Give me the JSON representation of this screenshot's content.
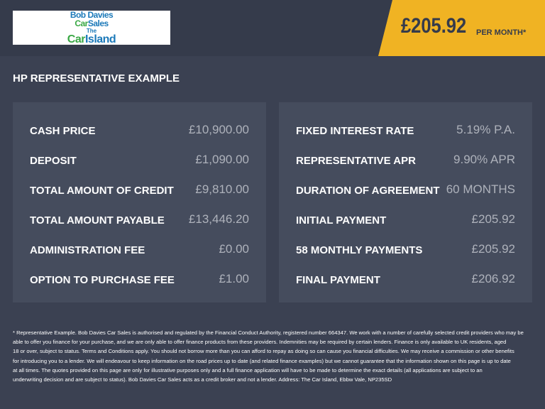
{
  "logo": {
    "line1": "Bob Davies",
    "line2a": "Car",
    "line2b": "Sales",
    "line3": "The",
    "line4a": "Car",
    "line4b": "Island"
  },
  "header": {
    "price": "£205.92",
    "per_month": "PER MONTH*"
  },
  "title": "HP REPRESENTATIVE EXAMPLE",
  "left_panel": [
    {
      "label": "CASH PRICE",
      "value": "£10,900.00"
    },
    {
      "label": "DEPOSIT",
      "value": "£1,090.00"
    },
    {
      "label": "TOTAL AMOUNT OF CREDIT",
      "value": "£9,810.00"
    },
    {
      "label": "TOTAL AMOUNT PAYABLE",
      "value": "£13,446.20"
    },
    {
      "label": "ADMINISTRATION FEE",
      "value": "£0.00"
    },
    {
      "label": "OPTION TO PURCHASE FEE",
      "value": "£1.00"
    }
  ],
  "right_panel": [
    {
      "label": "FIXED INTEREST RATE",
      "value": "5.19% P.A."
    },
    {
      "label": "REPRESENTATIVE APR",
      "value": "9.90% APR"
    },
    {
      "label": "DURATION OF AGREEMENT",
      "value": "60 MONTHS"
    },
    {
      "label": "INITIAL PAYMENT",
      "value": "£205.92"
    },
    {
      "label": "58 MONTHLY PAYMENTS",
      "value": "£205.92"
    },
    {
      "label": "FINAL PAYMENT",
      "value": "£206.92"
    }
  ],
  "footer": [
    "* Representative Example. Bob Davies Car Sales is authorised and regulated by the Financial Conduct Authority, registered number 664347. We work with a number of carefully selected credit providers who may be",
    "able to offer you finance for your purchase, and we are only able to offer finance products from these providers. Indemnities may be required by certain lenders. Finance is only available to UK residents, aged",
    "18 or over, subject to status. Terms and Conditions apply. You should not borrow more than you can afford to repay as doing so can cause you financial difficulties. We may receive a commission or other benefits",
    "for introducing you to a lender. We will endeavour to keep information on the road prices up to date (and related finance examples) but we cannot guarantee that the information shown on this page is up to date",
    "at all times. The quotes provided on this page are only for illustrative purposes only and a full finance application will have to be made to determine the exact details (all applications are subject to an",
    "underwriting decision and are subject to status). Bob Davies Car Sales acts as a credit broker and not a lender. Address: The Car Island, Ebbw Vale, NP235SD"
  ]
}
